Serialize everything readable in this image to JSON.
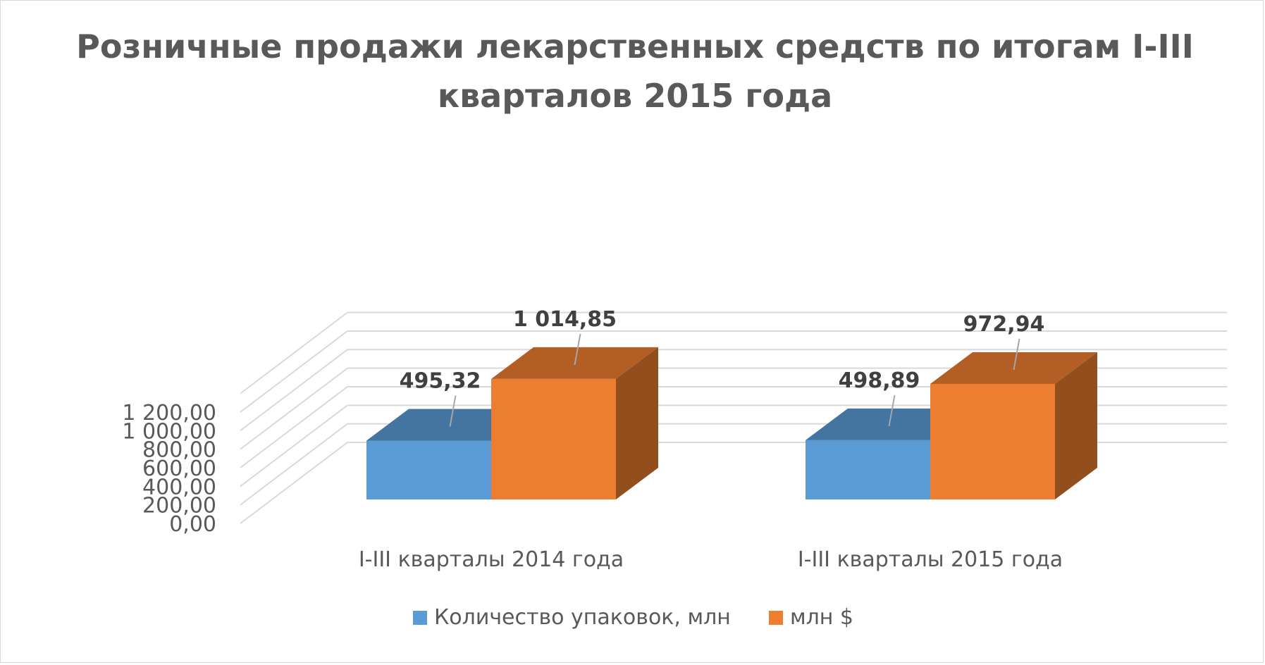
{
  "chart_data": {
    "type": "bar",
    "title": "Розничные продажи лекарственных средств по итогам I-III кварталов 2015 года",
    "categories": [
      "I-III кварталы 2014 года",
      "I-III кварталы 2015 года"
    ],
    "series": [
      {
        "name": "Количество упаковок, млн",
        "values": [
          495.32,
          498.89
        ],
        "labels": [
          "495,32",
          "498,89"
        ],
        "color": "#5B9BD5"
      },
      {
        "name": "млн $",
        "values": [
          1014.85,
          972.94
        ],
        "labels": [
          "1 014,85",
          "972,94"
        ],
        "color": "#ED7D31"
      }
    ],
    "y_ticks": [
      "0,00",
      "200,00",
      "400,00",
      "600,00",
      "800,00",
      "1 000,00",
      "1 200,00"
    ],
    "ylim": [
      0,
      1200
    ],
    "grid": true,
    "legend": "bottom"
  }
}
